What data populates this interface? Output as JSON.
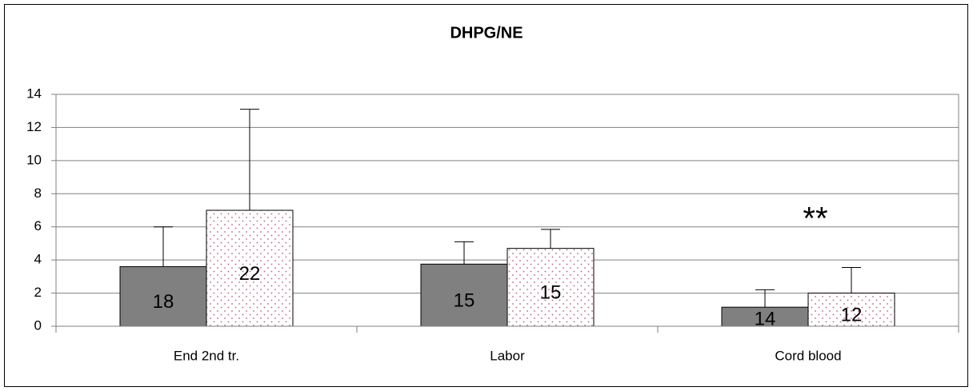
{
  "chart_data": {
    "type": "bar",
    "title": "DHPG/NE",
    "categories": [
      "End 2nd tr.",
      "Labor",
      "Cord blood"
    ],
    "series": [
      {
        "color": "#808080",
        "values": [
          3.6,
          3.75,
          1.15
        ],
        "errors": [
          2.4,
          1.35,
          1.05
        ],
        "labels": [
          "18",
          "15",
          "14"
        ]
      },
      {
        "color": "#ffffff",
        "pattern": "dots",
        "pattern_color": "#c0607a",
        "values": [
          7.0,
          4.7,
          2.0
        ],
        "errors": [
          6.1,
          1.15,
          1.55
        ],
        "labels": [
          "22",
          "15",
          "12"
        ]
      }
    ],
    "annotation": "**",
    "ylim": [
      0,
      14
    ],
    "yticks": [
      0,
      2,
      4,
      6,
      8,
      10,
      12,
      14
    ],
    "grid": true
  }
}
